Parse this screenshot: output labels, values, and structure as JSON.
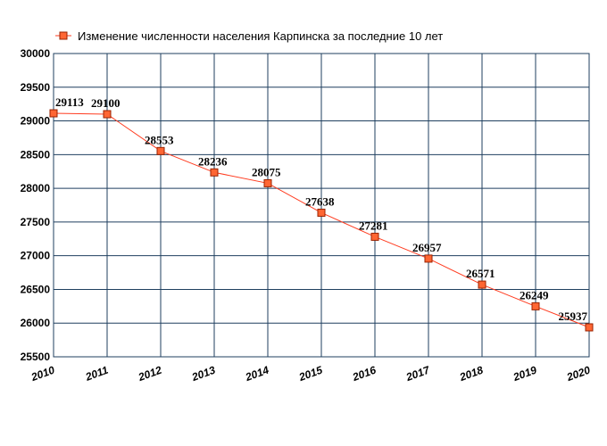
{
  "chart_data": {
    "type": "line",
    "title": "",
    "xlabel": "",
    "ylabel": "",
    "series": [
      {
        "name": "Изменение численности населения Карпинска за последние 10 лет",
        "x": [
          2010,
          2011,
          2012,
          2013,
          2014,
          2015,
          2016,
          2017,
          2018,
          2019,
          2020
        ],
        "values": [
          29113,
          29100,
          28553,
          28236,
          28075,
          27638,
          27281,
          26957,
          26571,
          26249,
          25937
        ],
        "labels": [
          "29113",
          "29100",
          "28553",
          "28236",
          "28075",
          "27638",
          "27281",
          "26957",
          "26571",
          "26249",
          "25937"
        ]
      }
    ],
    "x_ticks": [
      "2010",
      "2011",
      "2012",
      "2013",
      "2014",
      "2015",
      "2016",
      "2017",
      "2018",
      "2019",
      "2020"
    ],
    "y_ticks": [
      "25500",
      "26000",
      "26500",
      "27000",
      "27500",
      "28000",
      "28500",
      "29000",
      "29500",
      "30000"
    ],
    "ylim": [
      25500,
      30000
    ],
    "grid": true,
    "legend_position": "top",
    "colors": {
      "line": "#ff3b1f",
      "marker_fill": "#ff6633",
      "marker_stroke": "#992200",
      "grid": "#1f3f5f"
    }
  }
}
